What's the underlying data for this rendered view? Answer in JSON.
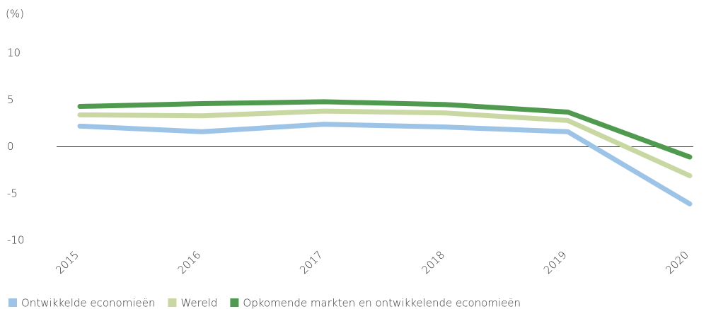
{
  "chart_data": {
    "type": "line",
    "y_label": "(%)",
    "categories": [
      "2015",
      "2016",
      "2017",
      "2018",
      "2019",
      "2020"
    ],
    "series": [
      {
        "name": "Ontwikkelde economieën",
        "color": "#9dc3e6",
        "values": [
          2.2,
          1.6,
          2.4,
          2.1,
          1.6,
          -6.1
        ]
      },
      {
        "name": "Wereld",
        "color": "#c9d7a3",
        "values": [
          3.4,
          3.3,
          3.8,
          3.6,
          2.8,
          -3.1
        ]
      },
      {
        "name": "Opkomende markten en ontwikkelende economieën",
        "color": "#4f9a4f",
        "values": [
          4.3,
          4.6,
          4.8,
          4.5,
          3.7,
          -1.1
        ]
      }
    ],
    "ylim": [
      -10,
      10
    ],
    "yticks": [
      -10,
      -5,
      0,
      5,
      10
    ],
    "grid": false,
    "legend": "bottom"
  }
}
